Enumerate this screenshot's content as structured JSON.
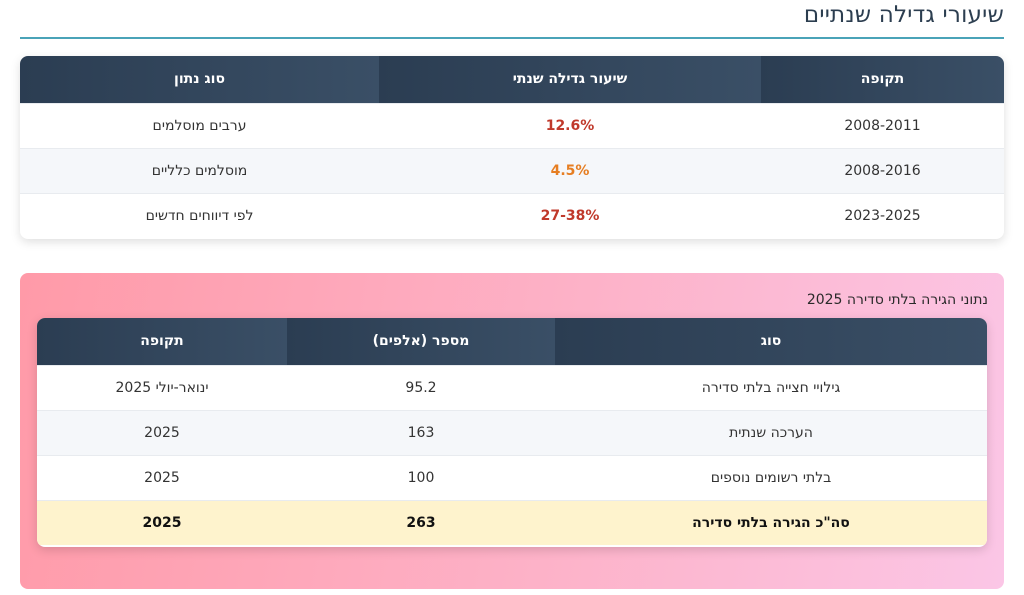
{
  "page": {
    "title": "שיעורי גדילה שנתיים"
  },
  "growth_table": {
    "headers": [
      "תקופה",
      "שיעור גדילה שנתי",
      "סוג נתון"
    ],
    "rows": [
      {
        "period": "2008-2011",
        "rate": "12.6%",
        "type": "ערבים מוסלמים",
        "rate_color": "#c0392b"
      },
      {
        "period": "2008-2016",
        "rate": "4.5%",
        "type": "מוסלמים כלליים",
        "rate_color": "#e67e22"
      },
      {
        "period": "2023-2025",
        "rate": "27-38%",
        "type": "לפי דיווחים חדשים",
        "rate_color": "#c0392b"
      }
    ]
  },
  "migration": {
    "caption": "נתוני הגירה בלתי סדירה 2025",
    "headers": [
      "סוג",
      "מספר (אלפים)",
      "תקופה"
    ],
    "rows": [
      {
        "type": "גילויי חצייה בלתי סדירה",
        "number": "95.2",
        "period": "ינואר-יולי 2025"
      },
      {
        "type": "הערכה שנתית",
        "number": "163",
        "period": "2025"
      },
      {
        "type": "בלתי רשומים נוספים",
        "number": "100",
        "period": "2025"
      }
    ],
    "total": {
      "type": "סה\"כ הגירה בלתי סדירה",
      "number": "263",
      "period": "2025"
    }
  }
}
